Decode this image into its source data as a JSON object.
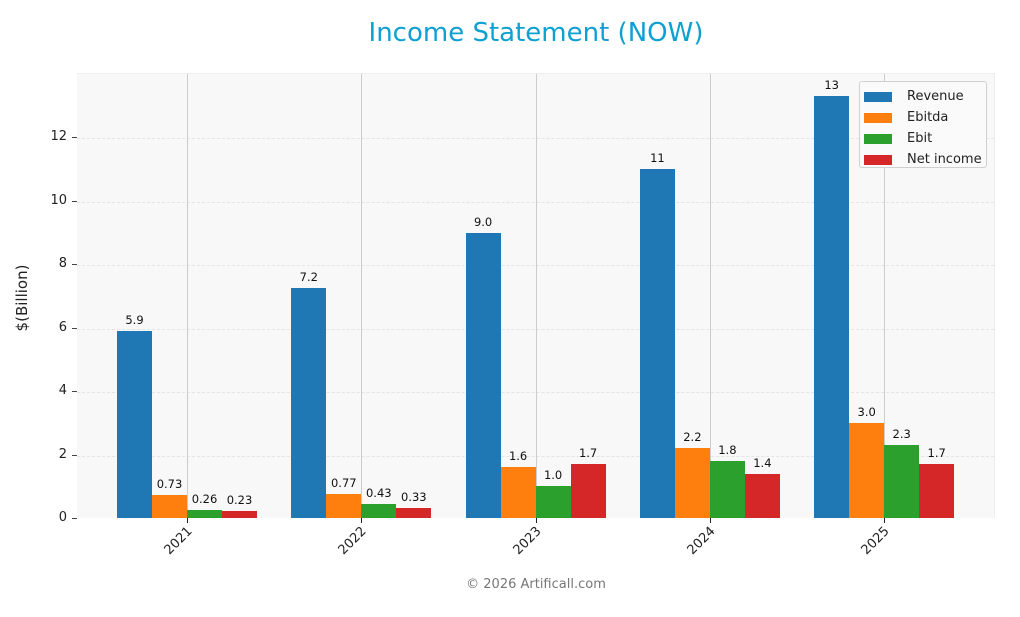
{
  "title": "Income Statement (NOW)",
  "footer": "© 2026 Artificall.com",
  "colors": {
    "title": "#0fa0d2",
    "Revenue": "#1f77b4",
    "Ebitda": "#ff7f0e",
    "Ebit": "#2ca02c",
    "Net income": "#d62728"
  },
  "chart_data": {
    "type": "bar",
    "title": "Income Statement (NOW)",
    "xlabel": "",
    "ylabel": "$(Billion)",
    "ylim": [
      0,
      14
    ],
    "yticks": [
      0,
      2,
      4,
      6,
      8,
      10,
      12
    ],
    "grid": true,
    "legend_position": "upper right",
    "categories": [
      "2021",
      "2022",
      "2023",
      "2024",
      "2025"
    ],
    "series": [
      {
        "name": "Revenue",
        "color": "#1f77b4",
        "values": [
          5.89,
          7.24,
          8.98,
          10.98,
          13.28
        ],
        "labels": [
          "5.9",
          "7.2",
          "9.0",
          "11",
          "13"
        ]
      },
      {
        "name": "Ebitda",
        "color": "#ff7f0e",
        "values": [
          0.73,
          0.77,
          1.6,
          2.2,
          3.0
        ],
        "labels": [
          "0.73",
          "0.77",
          "1.6",
          "2.2",
          "3.0"
        ]
      },
      {
        "name": "Ebit",
        "color": "#2ca02c",
        "values": [
          0.26,
          0.43,
          1.0,
          1.8,
          2.3
        ],
        "labels": [
          "0.26",
          "0.43",
          "1.0",
          "1.8",
          "2.3"
        ]
      },
      {
        "name": "Net income",
        "color": "#d62728",
        "values": [
          0.23,
          0.33,
          1.7,
          1.4,
          1.7
        ],
        "labels": [
          "0.23",
          "0.33",
          "1.7",
          "1.4",
          "1.7"
        ]
      }
    ]
  }
}
